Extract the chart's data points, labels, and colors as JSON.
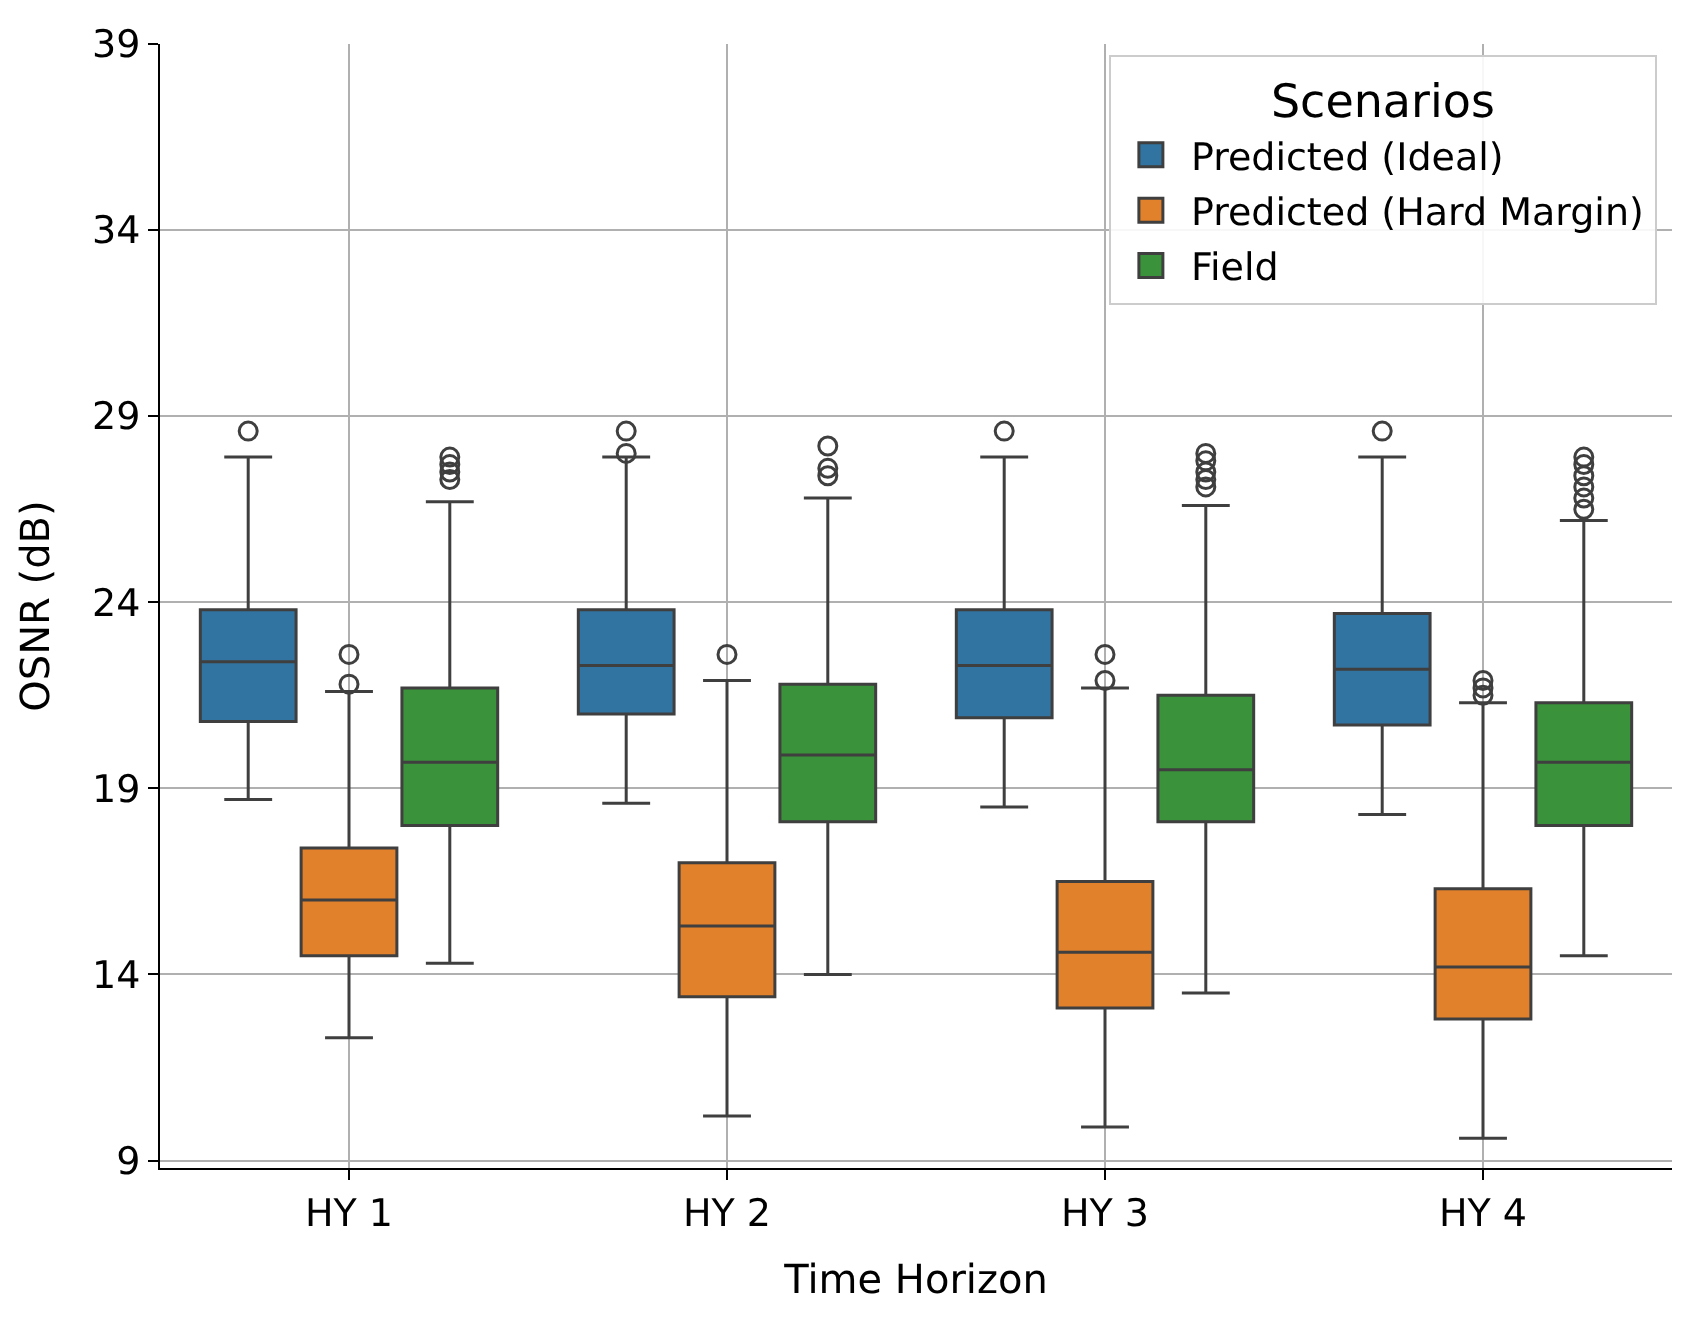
{
  "chart_data": {
    "type": "box",
    "xlabel": "Time Horizon",
    "ylabel": "OSNR (dB)",
    "legend_title": "Scenarios",
    "categories": [
      "HY 1",
      "HY 2",
      "HY 3",
      "HY 4"
    ],
    "ylim": [
      8.8,
      39
    ],
    "yticks": [
      9,
      14,
      19,
      24,
      29,
      34,
      39
    ],
    "grid": true,
    "legend": "top right",
    "series": [
      {
        "name": "Predicted (Ideal)",
        "color": "#3274a1",
        "boxes": [
          {
            "low": 18.7,
            "q1": 20.8,
            "median": 22.4,
            "q3": 23.8,
            "high": 27.9,
            "outliers": [
              28.6
            ]
          },
          {
            "low": 18.6,
            "q1": 21.0,
            "median": 22.3,
            "q3": 23.8,
            "high": 27.9,
            "outliers": [
              28.6,
              28.0
            ]
          },
          {
            "low": 18.5,
            "q1": 20.9,
            "median": 22.3,
            "q3": 23.8,
            "high": 27.9,
            "outliers": [
              28.6
            ]
          },
          {
            "low": 18.3,
            "q1": 20.7,
            "median": 22.2,
            "q3": 23.7,
            "high": 27.9,
            "outliers": [
              28.6
            ]
          }
        ]
      },
      {
        "name": "Predicted (Hard Margin)",
        "color": "#e1812c",
        "boxes": [
          {
            "low": 12.3,
            "q1": 14.5,
            "median": 16.0,
            "q3": 17.4,
            "high": 21.6,
            "outliers": [
              22.6,
              21.8
            ]
          },
          {
            "low": 10.2,
            "q1": 13.4,
            "median": 15.3,
            "q3": 17.0,
            "high": 21.9,
            "outliers": [
              22.6
            ]
          },
          {
            "low": 9.9,
            "q1": 13.1,
            "median": 14.6,
            "q3": 16.5,
            "high": 21.7,
            "outliers": [
              22.6,
              21.9
            ]
          },
          {
            "low": 9.6,
            "q1": 12.8,
            "median": 14.2,
            "q3": 16.3,
            "high": 21.3,
            "outliers": [
              21.9,
              21.7,
              21.5
            ]
          }
        ]
      },
      {
        "name": "Field",
        "color": "#3a923a",
        "boxes": [
          {
            "low": 14.3,
            "q1": 18.0,
            "median": 19.7,
            "q3": 21.7,
            "high": 26.7,
            "outliers": [
              27.9,
              27.7,
              27.5,
              27.3
            ]
          },
          {
            "low": 14.0,
            "q1": 18.1,
            "median": 19.9,
            "q3": 21.8,
            "high": 26.8,
            "outliers": [
              28.2,
              27.6,
              27.4
            ]
          },
          {
            "low": 13.5,
            "q1": 18.1,
            "median": 19.5,
            "q3": 21.5,
            "high": 26.6,
            "outliers": [
              28.0,
              27.8,
              27.5,
              27.3,
              27.1
            ]
          },
          {
            "low": 14.5,
            "q1": 18.0,
            "median": 19.7,
            "q3": 21.3,
            "high": 26.2,
            "outliers": [
              27.9,
              27.7,
              27.4,
              27.1,
              26.8,
              26.5
            ]
          }
        ]
      }
    ]
  }
}
